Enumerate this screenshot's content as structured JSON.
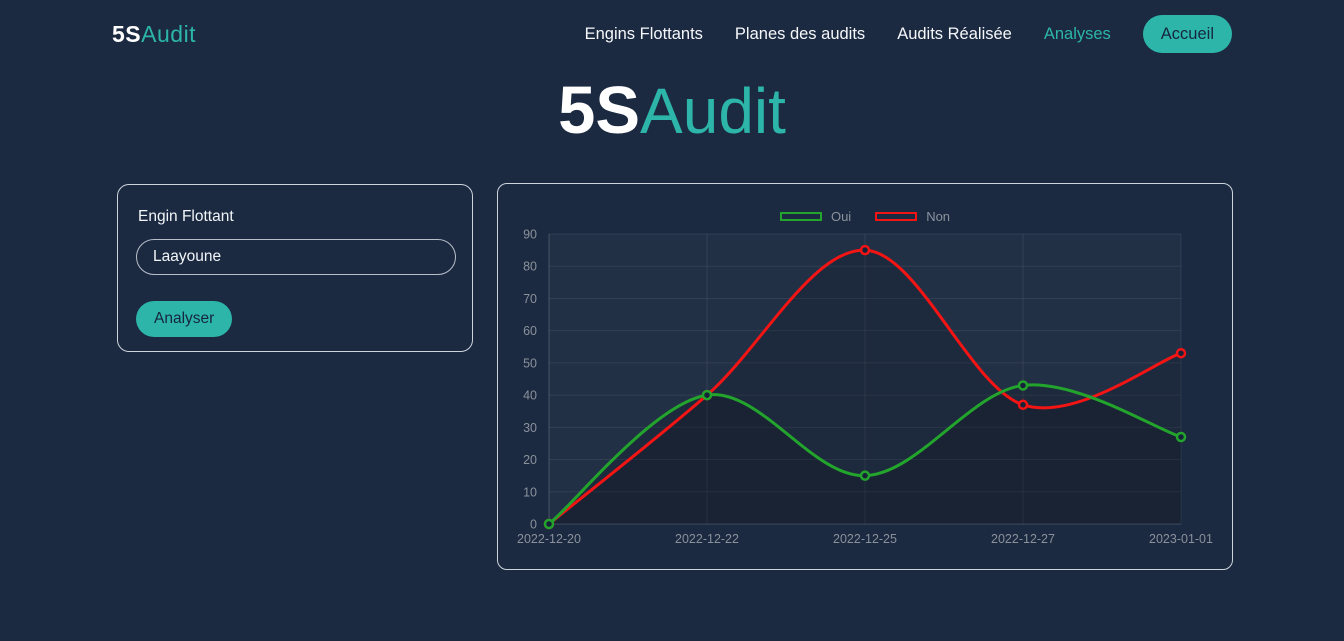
{
  "navbar": {
    "brand": {
      "part1": "5S",
      "part2": "Audit"
    },
    "links": [
      {
        "label": "Engins Flottants",
        "active": false
      },
      {
        "label": "Planes des audits",
        "active": false
      },
      {
        "label": "Audits Réalisée",
        "active": false
      },
      {
        "label": "Analyses",
        "active": true
      }
    ],
    "accueil_label": "Accueil"
  },
  "hero": {
    "part1": "5S",
    "part2": "Audit"
  },
  "panel": {
    "label": "Engin Flottant",
    "input_value": "Laayoune",
    "button_label": "Analyser"
  },
  "chart_data": {
    "type": "line",
    "categories": [
      "2022-12-20",
      "2022-12-22",
      "2022-12-25",
      "2022-12-27",
      "2023-01-01"
    ],
    "series": [
      {
        "name": "Oui",
        "color": "#23a42c",
        "values": [
          0,
          40,
          15,
          43,
          27
        ]
      },
      {
        "name": "Non",
        "color": "#f31414",
        "values": [
          0,
          40,
          85,
          37,
          53
        ]
      }
    ],
    "title": "",
    "xlabel": "",
    "ylabel": "",
    "ylim": [
      0,
      90
    ],
    "ytick_step": 10,
    "grid": true,
    "legend_position": "top",
    "curve": "smooth",
    "area_fill": "rgba(0,0,0,0.13)"
  },
  "colors": {
    "background": "#1b2a41",
    "accent": "#2cb5a8",
    "card_border": "#ecf2f8",
    "tick_text": "#8b919b",
    "grid_line": "rgba(255,255,255,0.07)",
    "axis_line": "rgba(255,255,255,0.18)",
    "plot_background": "rgba(255,255,255,0.03)"
  }
}
